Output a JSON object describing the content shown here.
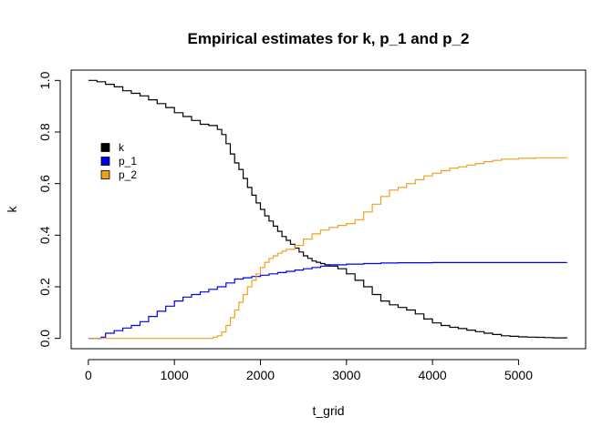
{
  "chart_data": {
    "type": "line",
    "title": "Empirical estimates for k, p_1 and p_2",
    "xlabel": "t_grid",
    "ylabel": "k",
    "xlim": [
      -200,
      5780
    ],
    "ylim": [
      -0.04,
      1.04
    ],
    "xticks": [
      0,
      1000,
      2000,
      3000,
      4000,
      5000
    ],
    "xtick_labels": [
      "0",
      "1000",
      "2000",
      "3000",
      "4000",
      "5000"
    ],
    "yticks": [
      0.0,
      0.2,
      0.4,
      0.6,
      0.8,
      1.0
    ],
    "ytick_labels": [
      "0.0",
      "0.2",
      "0.4",
      "0.6",
      "0.8",
      "1.0"
    ],
    "grid": false,
    "legend_position": "top-left",
    "step": true,
    "series": [
      {
        "name": "k",
        "color": "#000000",
        "x": [
          0,
          100,
          200,
          300,
          400,
          500,
          600,
          700,
          800,
          900,
          1000,
          1100,
          1200,
          1300,
          1400,
          1500,
          1550,
          1600,
          1650,
          1700,
          1750,
          1800,
          1850,
          1900,
          1950,
          2000,
          2050,
          2100,
          2150,
          2200,
          2250,
          2300,
          2350,
          2400,
          2450,
          2500,
          2550,
          2600,
          2650,
          2700,
          2750,
          2800,
          2900,
          3000,
          3100,
          3200,
          3300,
          3400,
          3500,
          3600,
          3700,
          3800,
          3900,
          4000,
          4100,
          4200,
          4300,
          4400,
          4500,
          4600,
          4700,
          4800,
          4900,
          5000,
          5100,
          5200,
          5300,
          5400,
          5560
        ],
        "y": [
          1.0,
          0.995,
          0.985,
          0.975,
          0.96,
          0.95,
          0.94,
          0.925,
          0.91,
          0.895,
          0.875,
          0.86,
          0.845,
          0.83,
          0.825,
          0.81,
          0.79,
          0.755,
          0.715,
          0.68,
          0.655,
          0.62,
          0.585,
          0.555,
          0.525,
          0.5,
          0.475,
          0.455,
          0.435,
          0.415,
          0.395,
          0.38,
          0.365,
          0.35,
          0.335,
          0.32,
          0.31,
          0.3,
          0.295,
          0.29,
          0.285,
          0.28,
          0.27,
          0.25,
          0.225,
          0.2,
          0.17,
          0.145,
          0.13,
          0.12,
          0.11,
          0.095,
          0.075,
          0.06,
          0.05,
          0.043,
          0.038,
          0.032,
          0.026,
          0.02,
          0.015,
          0.01,
          0.008,
          0.006,
          0.005,
          0.004,
          0.003,
          0.002,
          0.0
        ]
      },
      {
        "name": "p_1",
        "color": "#0000ee",
        "x": [
          0,
          150,
          200,
          300,
          400,
          500,
          600,
          700,
          800,
          900,
          1000,
          1100,
          1200,
          1300,
          1400,
          1500,
          1600,
          1700,
          1800,
          1900,
          2000,
          2100,
          2200,
          2300,
          2400,
          2500,
          2600,
          2700,
          2800,
          3000,
          3200,
          3400,
          3600,
          4000,
          5560
        ],
        "y": [
          0.0,
          0.005,
          0.02,
          0.03,
          0.04,
          0.05,
          0.065,
          0.085,
          0.105,
          0.125,
          0.145,
          0.16,
          0.17,
          0.18,
          0.19,
          0.2,
          0.215,
          0.23,
          0.235,
          0.24,
          0.245,
          0.25,
          0.255,
          0.26,
          0.265,
          0.27,
          0.275,
          0.28,
          0.285,
          0.288,
          0.29,
          0.292,
          0.293,
          0.294,
          0.295
        ]
      },
      {
        "name": "p_2",
        "color": "#f0a020",
        "x": [
          0,
          1400,
          1450,
          1500,
          1550,
          1600,
          1650,
          1700,
          1750,
          1800,
          1850,
          1900,
          1950,
          2000,
          2050,
          2100,
          2150,
          2200,
          2250,
          2300,
          2400,
          2500,
          2600,
          2700,
          2800,
          2900,
          3000,
          3100,
          3200,
          3300,
          3400,
          3500,
          3600,
          3700,
          3800,
          3900,
          4000,
          4100,
          4200,
          4300,
          4400,
          4500,
          4600,
          4700,
          4800,
          5000,
          5200,
          5560
        ],
        "y": [
          0.0,
          0.0,
          0.005,
          0.01,
          0.025,
          0.05,
          0.08,
          0.11,
          0.14,
          0.17,
          0.2,
          0.225,
          0.25,
          0.275,
          0.295,
          0.31,
          0.32,
          0.33,
          0.338,
          0.345,
          0.36,
          0.385,
          0.405,
          0.42,
          0.43,
          0.438,
          0.445,
          0.46,
          0.49,
          0.52,
          0.55,
          0.575,
          0.585,
          0.6,
          0.615,
          0.63,
          0.64,
          0.65,
          0.66,
          0.665,
          0.672,
          0.678,
          0.685,
          0.69,
          0.695,
          0.698,
          0.7,
          0.702
        ]
      }
    ]
  }
}
